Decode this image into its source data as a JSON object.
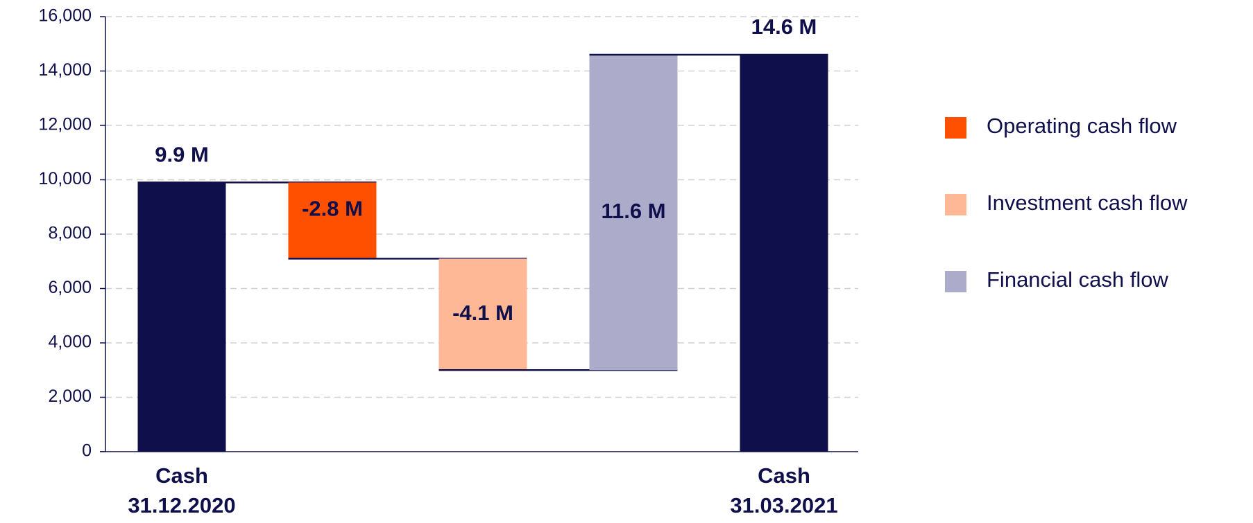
{
  "chart_data": {
    "type": "waterfall",
    "categories": [
      [
        "Cash",
        "31.12.2020"
      ],
      null,
      null,
      null,
      [
        "Cash",
        "31.03.2021"
      ]
    ],
    "measure": [
      "absolute",
      "relative",
      "relative",
      "relative",
      "total"
    ],
    "values": [
      9900,
      -2800,
      -4100,
      11600,
      14600
    ],
    "value_labels": [
      "9.9 M",
      "-2.8 M",
      "-4.1 M",
      "11.6 M",
      "14.6 M"
    ],
    "names": [
      null,
      "Operating cash flow",
      "Investment cash flow",
      "Financial cash flow",
      null
    ],
    "colors": [
      "#0f0f4b",
      "#ff5000",
      "#ffb896",
      "#acabca",
      "#0f0f4b"
    ],
    "ylim": [
      0,
      16000
    ],
    "yticks": [
      0,
      {
        "value": 2000,
        "label": "2,000"
      },
      {
        "value": 4000,
        "label": "4,000"
      },
      {
        "value": 6000,
        "label": "6,000"
      },
      {
        "value": 8000,
        "label": "8,000"
      },
      {
        "value": 10000,
        "label": "10,000"
      },
      {
        "value": 12000,
        "label": "12,000"
      },
      {
        "value": 14000,
        "label": "14,000"
      },
      {
        "value": 16000,
        "label": "16,000"
      }
    ],
    "grid": true
  }
}
